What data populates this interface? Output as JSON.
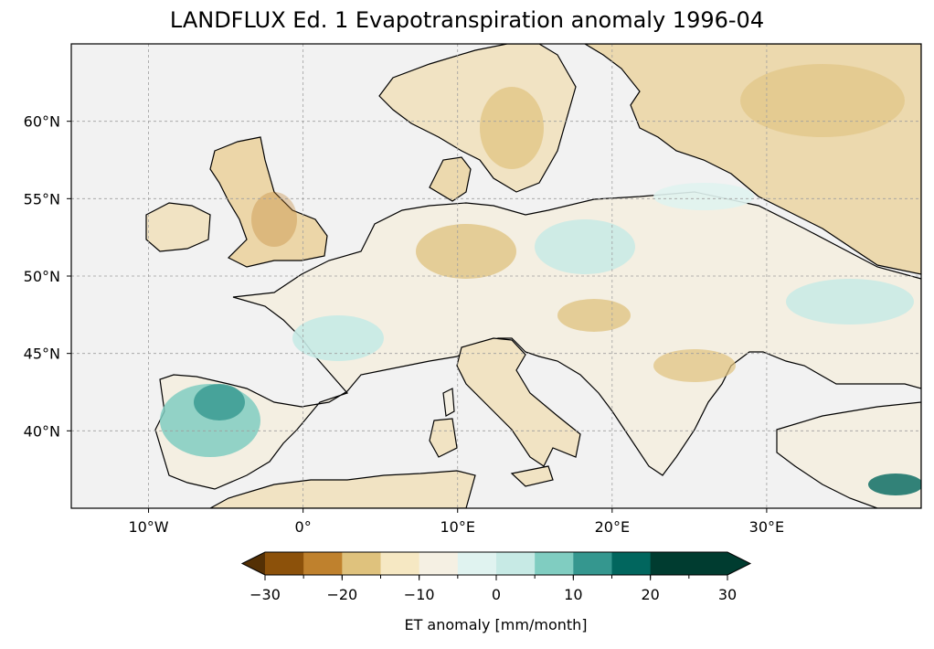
{
  "title": "LANDFLUX Ed. 1 Evapotranspiration anomaly 1996-04",
  "map": {
    "lon_range": [
      -15,
      40
    ],
    "lat_range": [
      35,
      65
    ],
    "lon_ticks": [
      {
        "value": -10,
        "label": "10°W"
      },
      {
        "value": 0,
        "label": "0°"
      },
      {
        "value": 10,
        "label": "10°E"
      },
      {
        "value": 20,
        "label": "20°E"
      },
      {
        "value": 30,
        "label": "30°E"
      }
    ],
    "lat_ticks": [
      {
        "value": 40,
        "label": "40°N"
      },
      {
        "value": 45,
        "label": "45°N"
      },
      {
        "value": 50,
        "label": "50°N"
      },
      {
        "value": 55,
        "label": "55°N"
      },
      {
        "value": 60,
        "label": "60°N"
      }
    ],
    "ocean_color": "#f2f2f2",
    "gridlines": "dashed gray"
  },
  "colorbar": {
    "label": "ET anomaly [mm/month]",
    "ticks": [
      {
        "value": -30,
        "label": "−30"
      },
      {
        "value": -20,
        "label": "−20"
      },
      {
        "value": -10,
        "label": "−10"
      },
      {
        "value": 0,
        "label": "0"
      },
      {
        "value": 10,
        "label": "10"
      },
      {
        "value": 20,
        "label": "20"
      },
      {
        "value": 30,
        "label": "30"
      }
    ],
    "levels": [
      -30,
      -25,
      -20,
      -15,
      -10,
      -5,
      0,
      5,
      10,
      15,
      20,
      25,
      30
    ],
    "colors": [
      "#543005",
      "#8c510a",
      "#bf812d",
      "#dfc27d",
      "#f6e8c3",
      "#f5f0e3",
      "#e0f3f0",
      "#c7eae5",
      "#80cdc1",
      "#35978f",
      "#01665e",
      "#003c30"
    ],
    "extend": "both"
  }
}
